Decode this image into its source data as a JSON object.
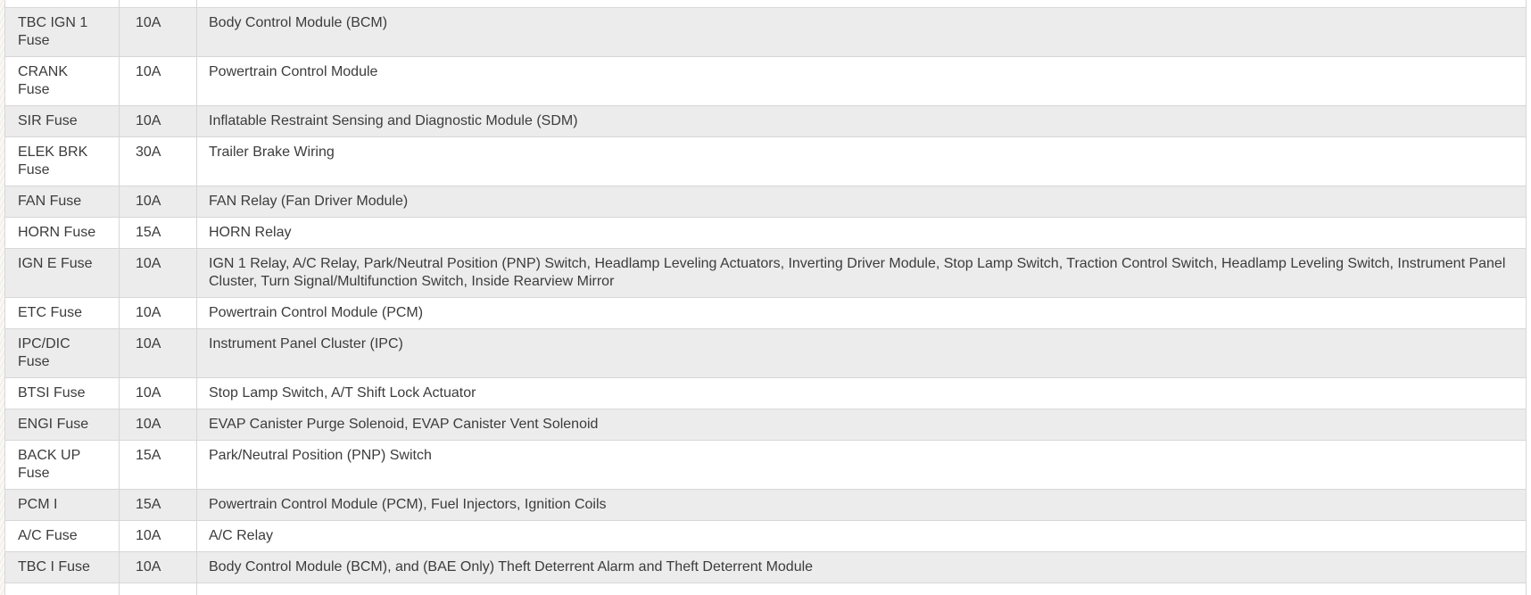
{
  "fuse_table": {
    "rows": [
      {
        "name": "TBC IGN 1 Fuse",
        "amperage": "10A",
        "description": "Body Control Module (BCM)"
      },
      {
        "name": "CRANK Fuse",
        "amperage": "10A",
        "description": "Powertrain Control Module"
      },
      {
        "name": "SIR Fuse",
        "amperage": "10A",
        "description": "Inflatable Restraint Sensing and Diagnostic Module (SDM)"
      },
      {
        "name": "ELEK BRK Fuse",
        "amperage": "30A",
        "description": "Trailer Brake Wiring"
      },
      {
        "name": "FAN Fuse",
        "amperage": "10A",
        "description": "FAN Relay (Fan Driver Module)"
      },
      {
        "name": "HORN Fuse",
        "amperage": "15A",
        "description": "HORN Relay"
      },
      {
        "name": "IGN E Fuse",
        "amperage": "10A",
        "description": "IGN 1 Relay, A/C Relay, Park/Neutral Position (PNP) Switch, Headlamp Leveling Actuators, Inverting Driver Module, Stop Lamp Switch, Traction Control Switch, Headlamp Leveling Switch, Instrument Panel Cluster, Turn Signal/Multifunction Switch, Inside Rearview Mirror"
      },
      {
        "name": "ETC Fuse",
        "amperage": "10A",
        "description": "Powertrain Control Module (PCM)"
      },
      {
        "name": "IPC/DIC Fuse",
        "amperage": "10A",
        "description": "Instrument Panel Cluster (IPC)"
      },
      {
        "name": "BTSI Fuse",
        "amperage": "10A",
        "description": "Stop Lamp Switch, A/T Shift Lock Actuator"
      },
      {
        "name": "ENGI Fuse",
        "amperage": "10A",
        "description": "EVAP Canister Purge Solenoid, EVAP Canister Vent Solenoid"
      },
      {
        "name": "BACK UP Fuse",
        "amperage": "15A",
        "description": "Park/Neutral Position (PNP) Switch"
      },
      {
        "name": "PCM I",
        "amperage": "15A",
        "description": "Powertrain Control Module (PCM), Fuel Injectors, Ignition Coils"
      },
      {
        "name": "A/C Fuse",
        "amperage": "10A",
        "description": "A/C Relay"
      },
      {
        "name": "TBC I Fuse",
        "amperage": "10A",
        "description": "Body Control Module (BCM), and (BAE Only) Theft Deterrent Alarm and Theft Deterrent Module"
      }
    ]
  },
  "colors": {
    "row_stripe_bg": "#ececec",
    "row_bg": "#ffffff",
    "border": "#d7d7d7",
    "text": "#3c3c3e"
  }
}
